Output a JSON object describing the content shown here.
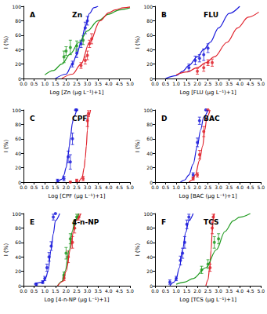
{
  "chart_data": [
    {
      "type": "scatter",
      "panel": "A",
      "title": "Zn",
      "x_label": "Log [Zn (µg L⁻¹)+1]",
      "y_label": "I (%)",
      "xlim": [
        0,
        5
      ],
      "ylim": [
        0,
        100
      ],
      "xticks": [
        {
          "value": 0,
          "label": "0.0"
        },
        0.5,
        {
          "value": 1,
          "label": "1.0"
        },
        1.5,
        {
          "value": 2,
          "label": "2.0"
        },
        2.5,
        {
          "value": 3,
          "label": "3.0"
        },
        3.5,
        {
          "value": 4,
          "label": "4.0"
        },
        4.5,
        {
          "value": 5,
          "label": "5.0"
        }
      ],
      "yticks": [
        0,
        20,
        40,
        60,
        80,
        100
      ],
      "grid": false,
      "series": [
        {
          "type": "line",
          "color": "#1a1adb",
          "x": [
            1.5,
            2.0,
            2.3,
            2.5,
            2.7,
            2.9,
            3.1,
            3.3,
            3.5
          ],
          "values": [
            0,
            6,
            20,
            33,
            50,
            72,
            90,
            98,
            100
          ]
        },
        {
          "type": "line",
          "color": "#1f9a1f",
          "x": [
            1.0,
            1.4,
            1.8,
            2.2,
            2.6,
            3.0,
            3.5,
            4.0,
            4.5,
            5.0
          ],
          "values": [
            5,
            11,
            20,
            34,
            50,
            66,
            80,
            89,
            95,
            98
          ]
        },
        {
          "type": "line",
          "color": "#e0202a",
          "x": [
            1.8,
            2.3,
            2.7,
            3.1,
            3.6,
            4.0,
            4.3,
            4.7,
            5.0
          ],
          "values": [
            0,
            6,
            20,
            50,
            80,
            91,
            95,
            98,
            99
          ]
        },
        {
          "type": "scatter",
          "color": "#1a1adb",
          "marker": "circle",
          "x": [
            2.3,
            2.5,
            2.7,
            2.9,
            3.0
          ],
          "values": [
            20,
            35,
            48,
            70,
            80
          ],
          "errors": [
            4,
            6,
            5,
            8,
            6
          ]
        },
        {
          "type": "scatter",
          "color": "#1f9a1f",
          "marker": "circle",
          "x": [
            1.9,
            2.0,
            2.2,
            2.5,
            2.8
          ],
          "values": [
            30,
            38,
            43,
            45,
            53
          ],
          "errors": [
            8,
            6,
            10,
            7,
            6
          ]
        },
        {
          "type": "scatter",
          "color": "#e0202a",
          "marker": "circle",
          "x": [
            2.7,
            2.9,
            3.0,
            3.1,
            3.2
          ],
          "values": [
            18,
            25,
            32,
            48,
            55
          ],
          "errors": [
            4,
            5,
            6,
            5,
            7
          ]
        }
      ]
    },
    {
      "type": "scatter",
      "panel": "B",
      "title": "FLU",
      "x_label": "Log [FLU (µg L⁻¹)+1]",
      "y_label": "I (%)",
      "xlim": [
        0,
        5
      ],
      "ylim": [
        0,
        100
      ],
      "xticks": [
        {
          "value": 0,
          "label": "0.0"
        },
        0.5,
        {
          "value": 1,
          "label": "1.0"
        },
        1.5,
        {
          "value": 2,
          "label": "2.0"
        },
        2.5,
        {
          "value": 3,
          "label": "3.0"
        },
        3.5,
        {
          "value": 4,
          "label": "4.0"
        },
        4.5,
        {
          "value": 5,
          "label": "5.0"
        }
      ],
      "yticks": [
        0,
        20,
        40,
        60,
        80,
        100
      ],
      "grid": false,
      "series": [
        {
          "type": "line",
          "color": "#1a1adb",
          "x": [
            0.5,
            1.0,
            1.3,
            1.6,
            2.0,
            2.3,
            2.6,
            3.0,
            3.5,
            4.0
          ],
          "values": [
            0,
            4,
            10,
            18,
            30,
            40,
            50,
            70,
            90,
            100
          ]
        },
        {
          "type": "line",
          "color": "#e0202a",
          "x": [
            1.0,
            1.5,
            2.0,
            2.4,
            2.8,
            3.4,
            3.9,
            4.4,
            4.9
          ],
          "values": [
            5,
            9,
            15,
            22,
            30,
            50,
            70,
            85,
            92
          ]
        },
        {
          "type": "scatter",
          "color": "#1a1adb",
          "marker": "circle",
          "x": [
            1.6,
            1.9,
            2.1,
            2.3,
            2.5
          ],
          "values": [
            15,
            25,
            28,
            33,
            42
          ],
          "errors": [
            5,
            6,
            5,
            8,
            6
          ]
        },
        {
          "type": "scatter",
          "color": "#e0202a",
          "marker": "circle",
          "x": [
            2.0,
            2.3,
            2.5,
            2.7
          ],
          "values": [
            10,
            15,
            22,
            22
          ],
          "errors": [
            4,
            5,
            4,
            5
          ]
        }
      ]
    },
    {
      "type": "scatter",
      "panel": "C",
      "title": "CPF",
      "x_label": "Log [CPF (µg L⁻¹)+1]",
      "y_label": "I (%)",
      "xlim": [
        0,
        5
      ],
      "ylim": [
        0,
        100
      ],
      "xticks": [
        {
          "value": 0,
          "label": "0.0"
        },
        0.5,
        {
          "value": 1,
          "label": "1.0"
        },
        1.5,
        {
          "value": 2,
          "label": "2.0"
        },
        2.5,
        {
          "value": 3,
          "label": "3.0"
        },
        3.5,
        {
          "value": 4,
          "label": "4.0"
        },
        4.5,
        {
          "value": 5,
          "label": "5.0"
        }
      ],
      "yticks": [
        0,
        20,
        40,
        60,
        80,
        100
      ],
      "grid": false,
      "series": [
        {
          "type": "line",
          "color": "#1a1adb",
          "x": [
            1.6,
            1.8,
            1.9,
            2.0,
            2.1,
            2.15,
            2.2,
            2.3,
            2.35,
            2.5
          ],
          "values": [
            0,
            4,
            10,
            20,
            38,
            50,
            62,
            82,
            90,
            100
          ]
        },
        {
          "type": "line",
          "color": "#e0202a",
          "x": [
            2.6,
            2.75,
            2.85,
            2.9,
            2.95,
            3.0,
            3.05,
            3.15
          ],
          "values": [
            0,
            6,
            20,
            33,
            50,
            72,
            90,
            100
          ]
        },
        {
          "type": "scatter",
          "color": "#1a1adb",
          "marker": "circle",
          "x": [
            1.6,
            1.9,
            2.1,
            2.2,
            2.3,
            2.45,
            2.5
          ],
          "values": [
            2,
            5,
            35,
            28,
            60,
            100,
            100
          ],
          "errors": [
            2,
            3,
            8,
            10,
            8,
            0,
            0
          ]
        },
        {
          "type": "scatter",
          "color": "#e0202a",
          "marker": "circle",
          "x": [
            2.2,
            2.5,
            2.8,
            3.0,
            3.05
          ],
          "values": [
            0,
            2,
            5,
            85,
            95
          ],
          "errors": [
            1,
            2,
            3,
            8,
            4
          ]
        }
      ]
    },
    {
      "type": "scatter",
      "panel": "D",
      "title": "BAC",
      "x_label": "Log [BAC (µg L⁻¹)+1]",
      "y_label": "I (%)",
      "xlim": [
        0,
        5
      ],
      "ylim": [
        0,
        100
      ],
      "xticks": [
        {
          "value": 0,
          "label": "0.0"
        },
        0.5,
        {
          "value": 1,
          "label": "1.0"
        },
        1.5,
        {
          "value": 2,
          "label": "2.0"
        },
        2.5,
        {
          "value": 3,
          "label": "3.0"
        },
        3.5,
        {
          "value": 4,
          "label": "4.0"
        },
        4.5,
        {
          "value": 5,
          "label": "5.0"
        }
      ],
      "yticks": [
        0,
        20,
        40,
        60,
        80,
        100
      ],
      "grid": false,
      "series": [
        {
          "type": "line",
          "color": "#1a1adb",
          "x": [
            1.2,
            1.4,
            1.6,
            1.8,
            2.0,
            2.15,
            2.3,
            2.5
          ],
          "values": [
            0,
            3,
            10,
            25,
            50,
            72,
            90,
            100
          ]
        },
        {
          "type": "line",
          "color": "#e0202a",
          "x": [
            1.6,
            1.75,
            1.9,
            2.1,
            2.25,
            2.35,
            2.45,
            2.6
          ],
          "values": [
            0,
            3,
            10,
            30,
            50,
            72,
            90,
            100
          ]
        },
        {
          "type": "scatter",
          "color": "#1a1adb",
          "marker": "circle",
          "x": [
            1.8,
            2.0,
            2.1,
            2.4
          ],
          "values": [
            10,
            55,
            85,
            100
          ],
          "errors": [
            3,
            6,
            5,
            0
          ]
        },
        {
          "type": "scatter",
          "color": "#e0202a",
          "marker": "circle",
          "x": [
            1.8,
            2.0,
            2.1,
            2.3,
            2.5
          ],
          "values": [
            5,
            10,
            38,
            70,
            100
          ],
          "errors": [
            2,
            3,
            6,
            7,
            0
          ]
        }
      ]
    },
    {
      "type": "scatter",
      "panel": "E",
      "title": "4-n-NP",
      "x_label": "Log [4-n-NP (µg L⁻¹)+1]",
      "y_label": "I (%)",
      "xlim": [
        0,
        5
      ],
      "ylim": [
        0,
        100
      ],
      "xticks": [
        {
          "value": 0,
          "label": "0.0"
        },
        0.5,
        {
          "value": 1,
          "label": "1.0"
        },
        1.5,
        {
          "value": 2,
          "label": "2.0"
        },
        2.5,
        {
          "value": 3,
          "label": "3.0"
        },
        3.5,
        {
          "value": 4,
          "label": "4.0"
        },
        4.5,
        {
          "value": 5,
          "label": "5.0"
        }
      ],
      "yticks": [
        0,
        20,
        40,
        60,
        80,
        100
      ],
      "grid": false,
      "series": [
        {
          "type": "line",
          "color": "#1a1adb",
          "x": [
            0.5,
            0.9,
            1.05,
            1.15,
            1.3,
            1.4,
            1.5,
            1.7
          ],
          "values": [
            2,
            5,
            11,
            20,
            50,
            72,
            90,
            100
          ]
        },
        {
          "type": "line",
          "color": "#1f9a1f",
          "x": [
            1.6,
            1.8,
            1.95,
            2.15,
            2.3,
            2.4,
            2.6
          ],
          "values": [
            0,
            6,
            20,
            50,
            76,
            90,
            100
          ]
        },
        {
          "type": "line",
          "color": "#e0202a",
          "x": [
            1.6,
            1.85,
            2.0,
            2.2,
            2.35,
            2.45,
            2.7
          ],
          "values": [
            0,
            6,
            20,
            50,
            76,
            90,
            100
          ]
        },
        {
          "type": "scatter",
          "color": "#1a1adb",
          "marker": "circle",
          "x": [
            0.6,
            0.9,
            1.0,
            1.1,
            1.2,
            1.3,
            1.4,
            1.5
          ],
          "values": [
            2,
            5,
            10,
            25,
            40,
            55,
            95,
            100
          ],
          "errors": [
            2,
            2,
            3,
            5,
            6,
            6,
            4,
            0
          ]
        },
        {
          "type": "scatter",
          "color": "#1f9a1f",
          "marker": "circle",
          "x": [
            1.9,
            2.0,
            2.2,
            2.4,
            2.5
          ],
          "values": [
            15,
            45,
            65,
            85,
            95
          ],
          "errors": [
            4,
            8,
            7,
            6,
            4
          ]
        },
        {
          "type": "scatter",
          "color": "#e0202a",
          "marker": "circle",
          "x": [
            1.9,
            2.1,
            2.3,
            2.4,
            2.6
          ],
          "values": [
            10,
            40,
            60,
            80,
            95
          ],
          "errors": [
            3,
            8,
            8,
            7,
            4
          ]
        }
      ]
    },
    {
      "type": "scatter",
      "panel": "F",
      "title": "TCS",
      "x_label": "Log [TCS (µg L⁻¹)+1]",
      "y_label": "I (%)",
      "xlim": [
        0,
        5
      ],
      "ylim": [
        0,
        100
      ],
      "xticks": [
        {
          "value": 0,
          "label": "0.0"
        },
        0.5,
        {
          "value": 1,
          "label": "1.0"
        },
        1.5,
        {
          "value": 2,
          "label": "2.0"
        },
        2.5,
        {
          "value": 3,
          "label": "3.0"
        },
        3.5,
        {
          "value": 4,
          "label": "4.0"
        },
        4.5,
        {
          "value": 5,
          "label": "5.0"
        }
      ],
      "yticks": [
        0,
        20,
        40,
        60,
        80,
        100
      ],
      "grid": false,
      "series": [
        {
          "type": "line",
          "color": "#1a1adb",
          "x": [
            0.7,
            0.9,
            1.0,
            1.15,
            1.3,
            1.45,
            1.6,
            1.8
          ],
          "values": [
            0,
            5,
            10,
            25,
            50,
            74,
            90,
            100
          ]
        },
        {
          "type": "line",
          "color": "#e0202a",
          "x": [
            2.4,
            2.5,
            2.58,
            2.65,
            2.7,
            2.75,
            2.8
          ],
          "values": [
            0,
            8,
            25,
            50,
            75,
            92,
            100
          ]
        },
        {
          "type": "line",
          "color": "#1f9a1f",
          "x": [
            1.0,
            1.4,
            1.8,
            2.4,
            2.9,
            3.3,
            3.7,
            4.0,
            4.5
          ],
          "values": [
            2,
            5,
            10,
            25,
            50,
            75,
            90,
            95,
            100
          ]
        },
        {
          "type": "scatter",
          "color": "#1a1adb",
          "marker": "circle",
          "x": [
            0.7,
            1.0,
            1.2,
            1.3,
            1.4,
            1.5,
            1.6
          ],
          "values": [
            5,
            10,
            35,
            45,
            60,
            85,
            95
          ],
          "errors": [
            3,
            3,
            6,
            7,
            8,
            6,
            4
          ]
        },
        {
          "type": "scatter",
          "color": "#e0202a",
          "marker": "circle",
          "x": [
            2.6,
            2.7,
            2.75
          ],
          "values": [
            25,
            80,
            95
          ],
          "errors": [
            5,
            8,
            4
          ]
        },
        {
          "type": "scatter",
          "color": "#1f9a1f",
          "marker": "circle",
          "x": [
            2.2,
            2.5,
            2.8,
            3.0
          ],
          "values": [
            22,
            30,
            60,
            65
          ],
          "errors": [
            5,
            6,
            8,
            7
          ]
        }
      ]
    }
  ]
}
